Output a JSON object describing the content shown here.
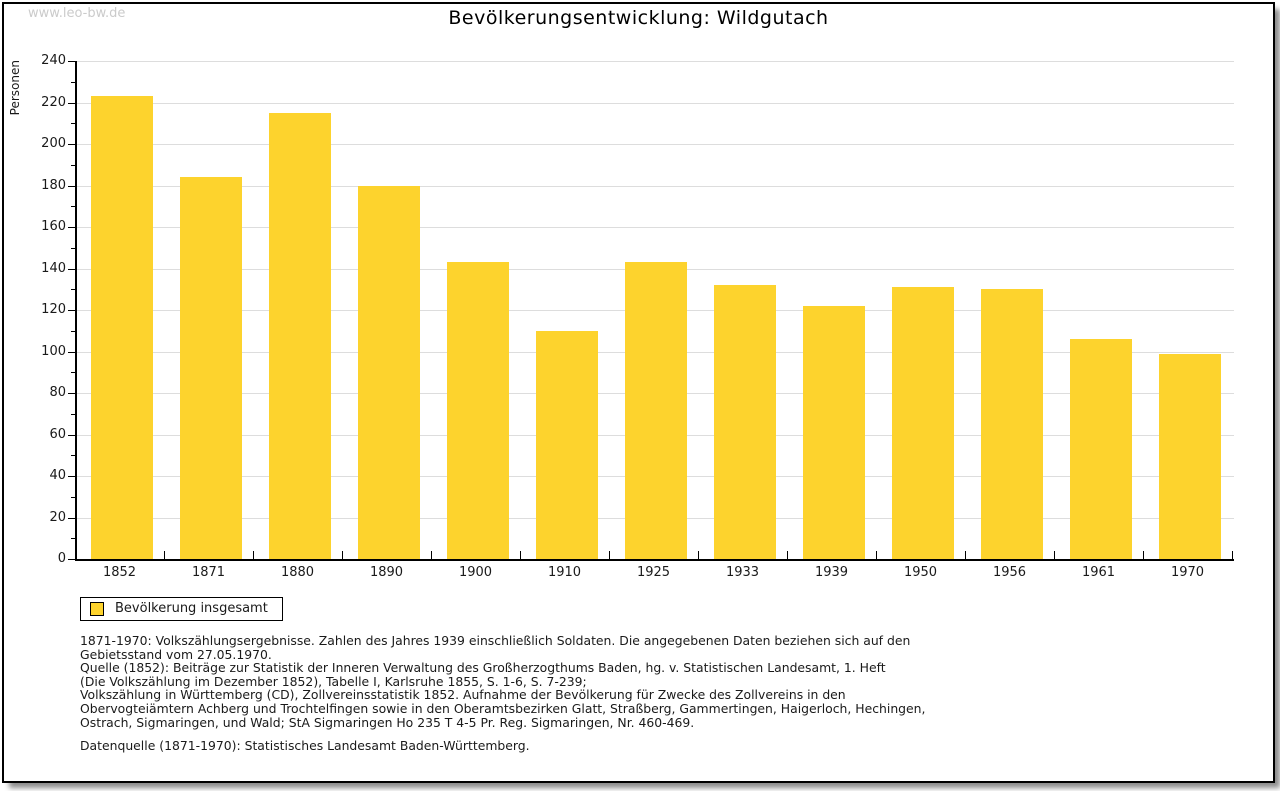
{
  "watermark": "www.leo-bw.de",
  "title": "Bevölkerungsentwicklung: Wildgutach",
  "chart_data": {
    "type": "bar",
    "title": "Bevölkerungsentwicklung: Wildgutach",
    "xlabel": "",
    "ylabel": "Personen",
    "categories": [
      "1852",
      "1871",
      "1880",
      "1890",
      "1900",
      "1910",
      "1925",
      "1933",
      "1939",
      "1950",
      "1956",
      "1961",
      "1970"
    ],
    "values": [
      223,
      184,
      215,
      180,
      143,
      110,
      143,
      132,
      122,
      131,
      130,
      106,
      99
    ],
    "ylim": [
      0,
      240
    ],
    "yticks": [
      0,
      20,
      40,
      60,
      80,
      100,
      120,
      140,
      160,
      180,
      200,
      220,
      240
    ],
    "ytick_minor_step": 10,
    "grid": true,
    "bar_color": "#FDD32D",
    "gridline_color": "#dddddd",
    "legend_position": "bottom-left",
    "legend": [
      {
        "label": "Bevölkerung insgesamt",
        "color": "#FDD32D"
      }
    ]
  },
  "legend": {
    "label": "Bevölkerung insgesamt"
  },
  "footnotes": {
    "lines": [
      "1871-1970: Volkszählungsergebnisse. Zahlen des Jahres 1939 einschließlich Soldaten. Die angegebenen Daten beziehen sich auf den",
      "Gebietsstand vom 27.05.1970.",
      "Quelle (1852): Beiträge zur Statistik der Inneren Verwaltung des Großherzogthums Baden, hg. v. Statistischen Landesamt, 1. Heft",
      "(Die Volkszählung im Dezember 1852), Tabelle I, Karlsruhe 1855, S. 1-6, S. 7-239;",
      "Volkszählung in Württemberg (CD), Zollvereinsstatistik 1852. Aufnahme der Bevölkerung für Zwecke des Zollvereins in den",
      "Obervogteiämtern Achberg und Trochtelfingen sowie in den Oberamtsbezirken Glatt, Straßberg, Gammertingen, Haigerloch, Hechingen,",
      "Ostrach, Sigmaringen, und Wald; StA Sigmaringen Ho 235 T 4-5 Pr. Reg. Sigmaringen, Nr. 460-469."
    ],
    "datasource": "Datenquelle (1871-1970): Statistisches Landesamt Baden-Württemberg."
  }
}
